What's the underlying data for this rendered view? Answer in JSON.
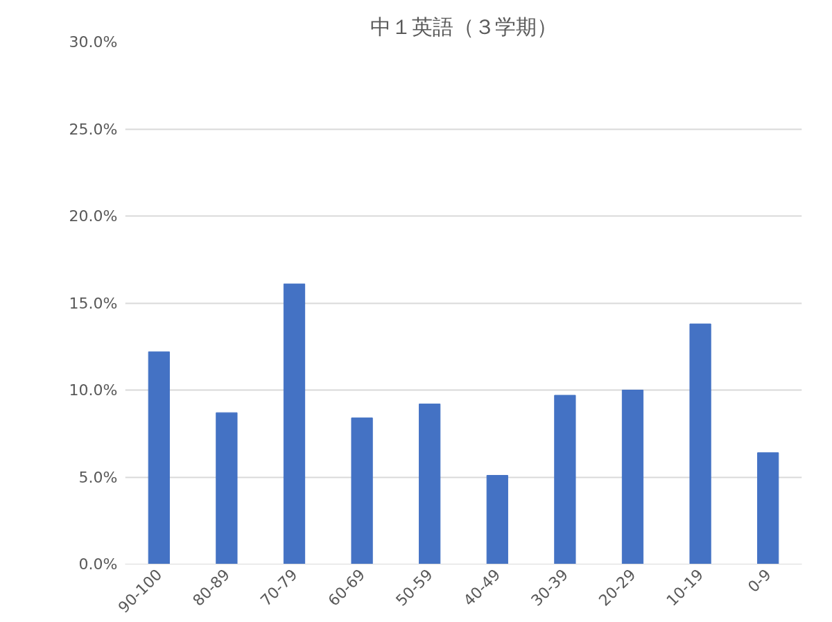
{
  "chart_data": {
    "type": "bar",
    "title": "中１英語（３学期）",
    "categories": [
      "90-100",
      "80-89",
      "70-79",
      "60-69",
      "50-59",
      "40-49",
      "30-39",
      "20-29",
      "10-19",
      "0-9"
    ],
    "values": [
      12.2,
      8.7,
      16.1,
      8.4,
      9.2,
      5.1,
      9.7,
      10.0,
      13.8,
      6.4
    ],
    "color": "#4472c4",
    "ylim": [
      0,
      30
    ],
    "yticks": [
      {
        "value": 0,
        "label": "0.0%"
      },
      {
        "value": 5,
        "label": "5.0%"
      },
      {
        "value": 10,
        "label": "10.0%"
      },
      {
        "value": 15,
        "label": "15.0%"
      },
      {
        "value": 20,
        "label": "20.0%"
      },
      {
        "value": 25,
        "label": "25.0%"
      },
      {
        "value": 30,
        "label": "30.0%"
      }
    ],
    "grid": "y"
  }
}
